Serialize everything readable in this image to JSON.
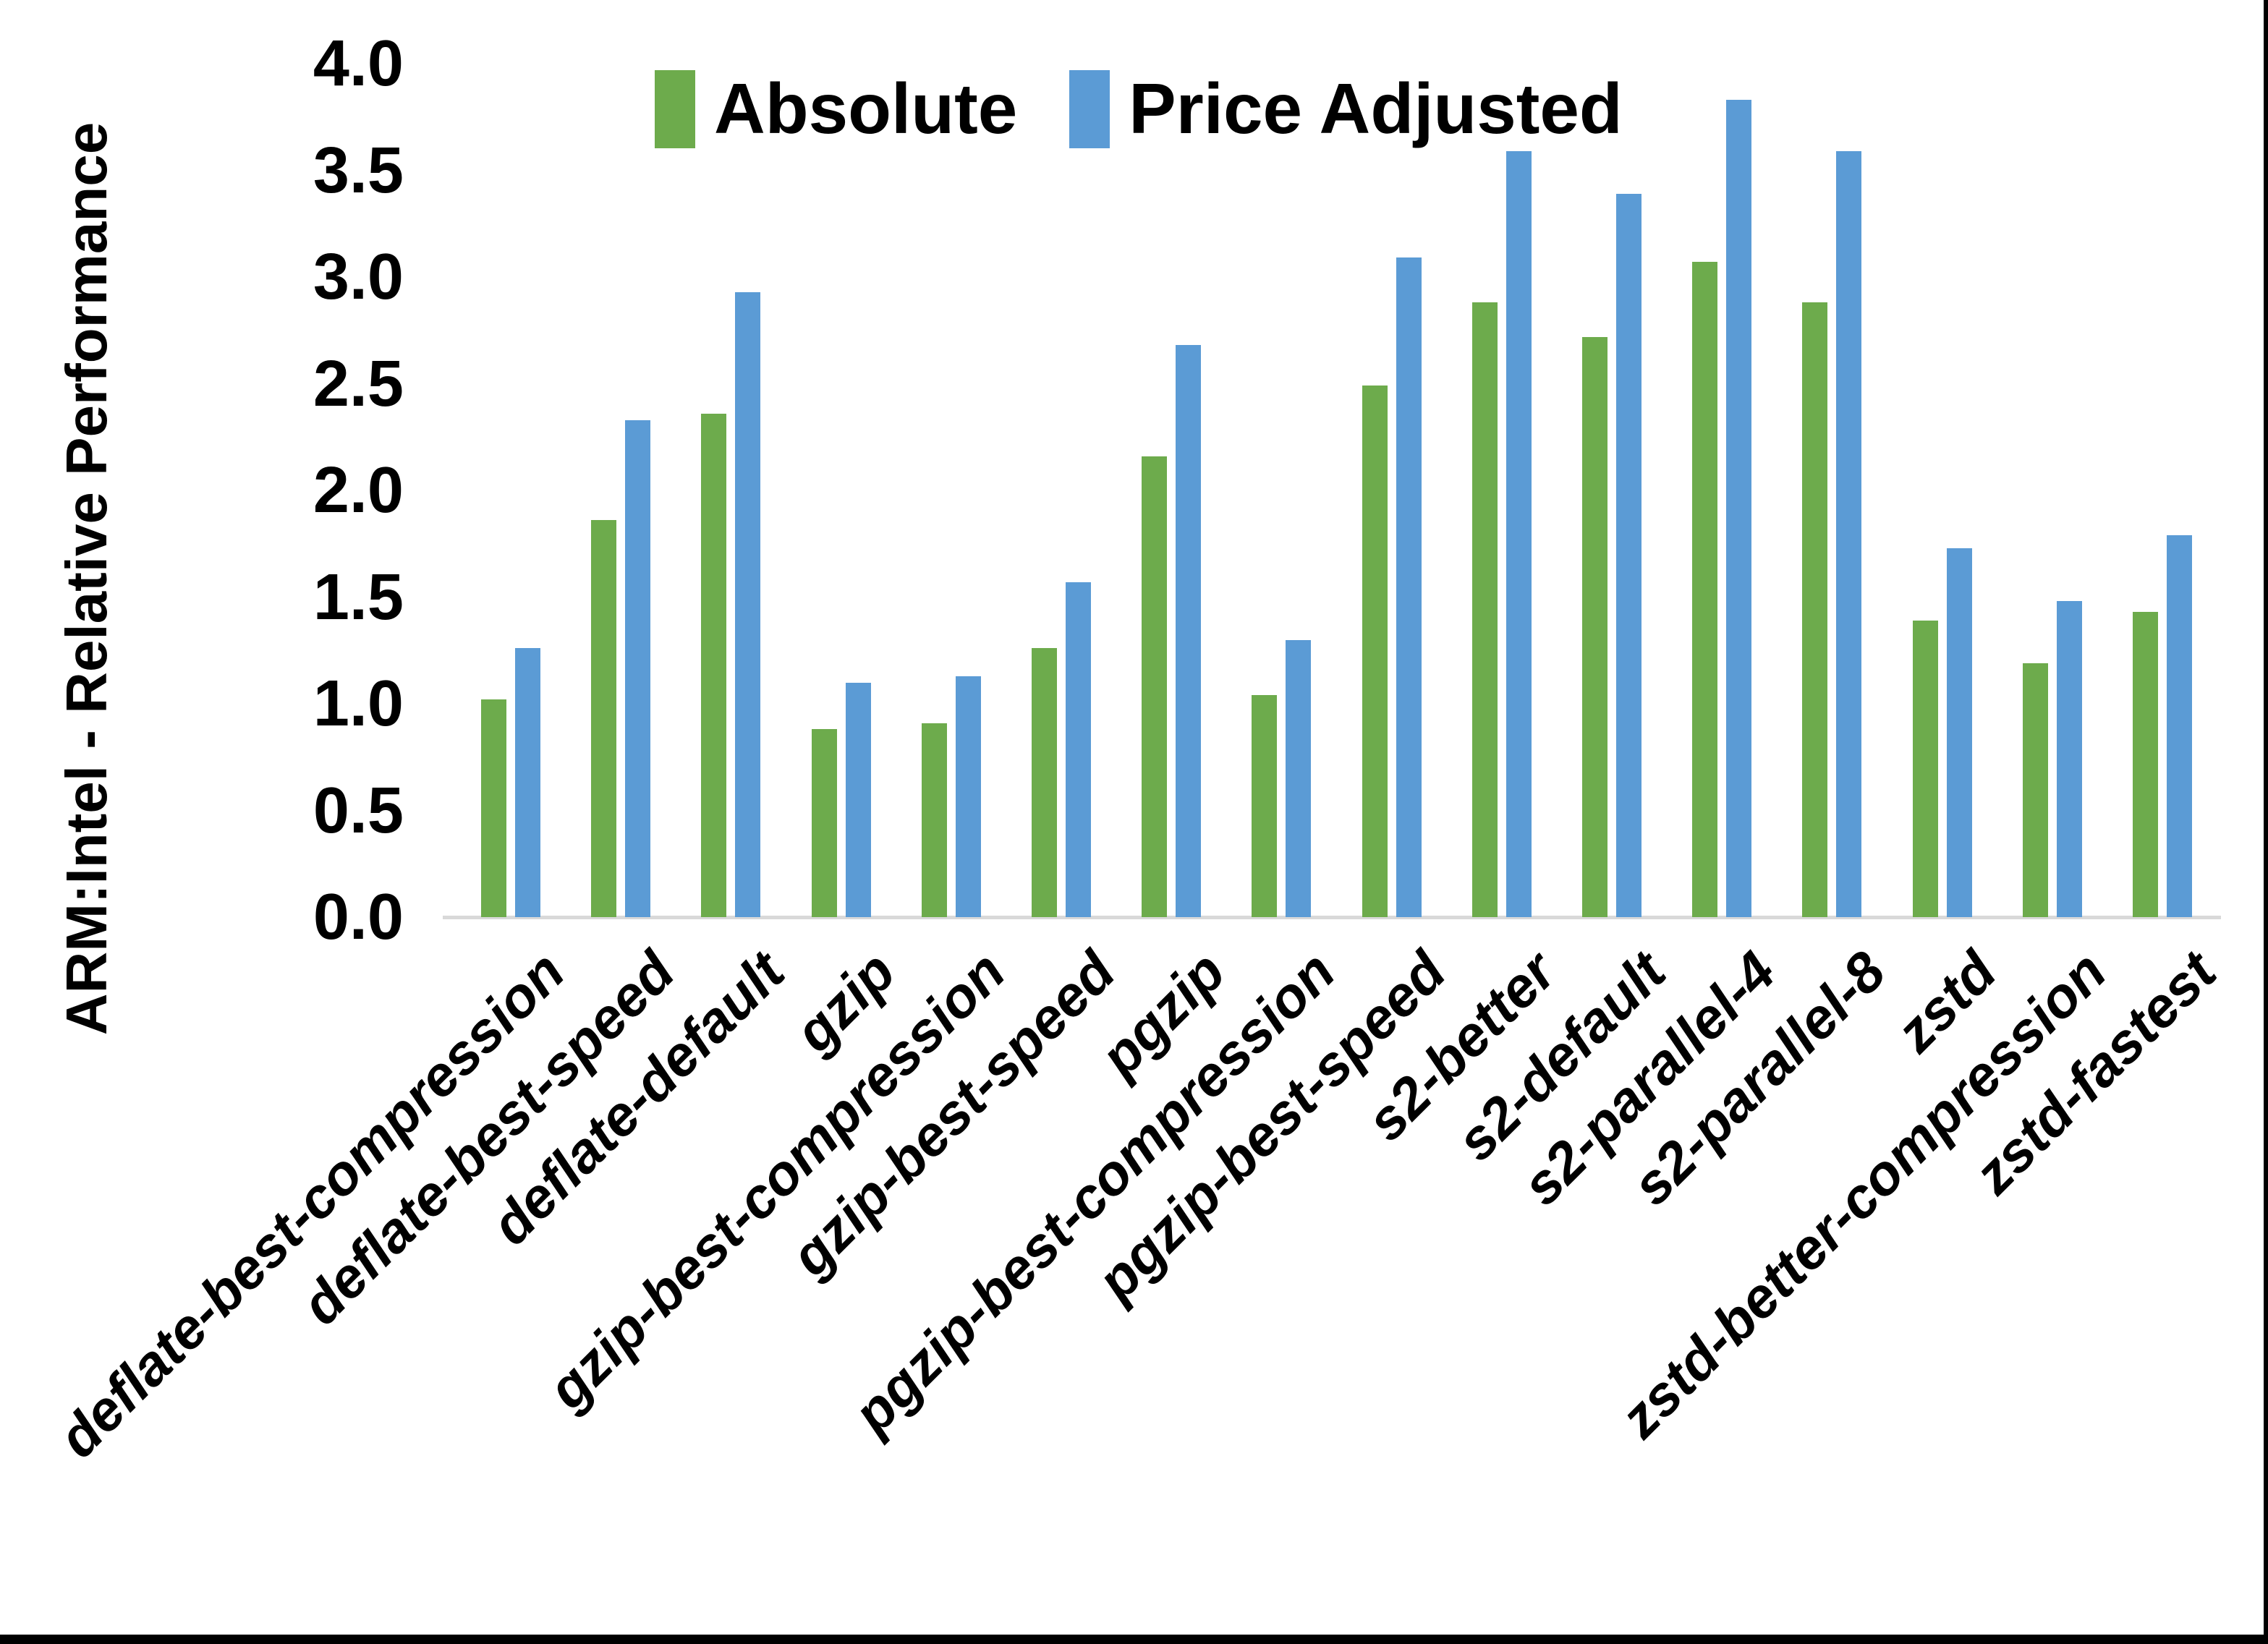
{
  "chart_data": {
    "type": "bar",
    "title": "",
    "xlabel": "",
    "ylabel": "ARM:Intel - Relative Performance",
    "ylim": [
      0.0,
      4.0
    ],
    "y_ticks": [
      0.0,
      0.5,
      1.0,
      1.5,
      2.0,
      2.5,
      3.0,
      3.5,
      4.0
    ],
    "grid": false,
    "legend_position": "top-center",
    "categories": [
      "deflate-best-compression",
      "deflate-best-speed",
      "deflate-default",
      "gzip",
      "gzip-best-compression",
      "gzip-best-speed",
      "pgzip",
      "pgzip-best-compression",
      "pgzip-best-speed",
      "s2-better",
      "s2-default",
      "s2-parallel-4",
      "s2-parallel-8",
      "zstd",
      "zstd-better-compression",
      "zstd-fastest"
    ],
    "series": [
      {
        "name": "Absolute",
        "color": "#6dab4c",
        "values": [
          1.02,
          1.86,
          2.36,
          0.88,
          0.91,
          1.26,
          2.16,
          1.04,
          2.49,
          2.88,
          2.72,
          3.07,
          2.88,
          1.39,
          1.19,
          1.43
        ]
      },
      {
        "name": "Price Adjusted",
        "color": "#5b9bd5",
        "values": [
          1.26,
          2.33,
          2.93,
          1.1,
          1.13,
          1.57,
          2.68,
          1.3,
          3.09,
          3.59,
          3.39,
          3.83,
          3.59,
          1.73,
          1.48,
          1.79
        ]
      }
    ]
  },
  "colors": {
    "background": "#ffffff",
    "axis_line": "#d9d9d9",
    "text": "#000000",
    "frame": "#000000"
  }
}
